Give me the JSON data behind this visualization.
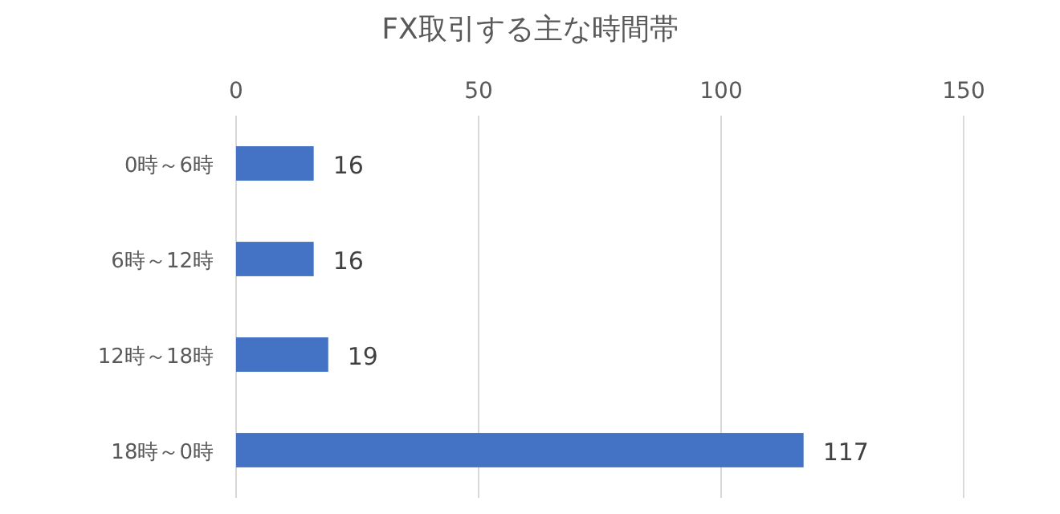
{
  "chart_data": {
    "type": "bar",
    "orientation": "horizontal",
    "title": "FX取引する主な時間帯",
    "categories": [
      "0時～6時",
      "6時～12時",
      "12時～18時",
      "18時～0時"
    ],
    "values": [
      16,
      16,
      19,
      117
    ],
    "color": "#4472c4",
    "xlim": [
      0,
      150
    ],
    "xticks": [
      0,
      50,
      100,
      150
    ],
    "grid": "x",
    "data_labels": true
  }
}
